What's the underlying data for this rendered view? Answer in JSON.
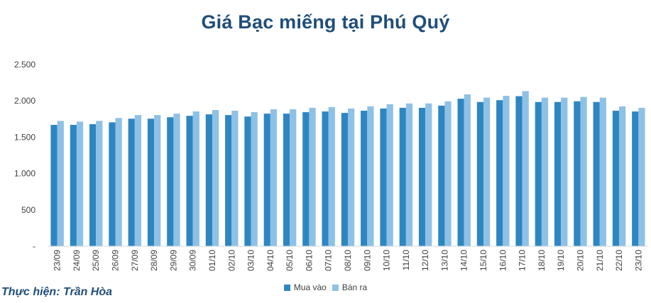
{
  "chart_data": {
    "type": "bar",
    "title": "Giá Bạc miếng tại Phú Quý",
    "xlabel": "",
    "ylabel": "",
    "ylim": [
      0,
      2500
    ],
    "yticks": [
      0,
      500,
      1000,
      1500,
      2000,
      2500
    ],
    "ytick_labels": [
      "-",
      "500",
      "1.000",
      "1.500",
      "2.000",
      "2.500"
    ],
    "grid": false,
    "legend_position": "bottom",
    "categories": [
      "23/09",
      "24/09",
      "25/09",
      "26/09",
      "27/09",
      "28/09",
      "29/09",
      "30/09",
      "01/10",
      "02/10",
      "03/10",
      "04/10",
      "05/10",
      "06/10",
      "07/10",
      "08/10",
      "09/10",
      "10/10",
      "11/10",
      "12/10",
      "13/10",
      "14/10",
      "15/10",
      "16/10",
      "17/10",
      "18/10",
      "19/10",
      "20/10",
      "21/10",
      "22/10",
      "23/10"
    ],
    "series": [
      {
        "name": "Mua vào",
        "color": "#2e86c1",
        "values": [
          1670,
          1670,
          1680,
          1705,
          1755,
          1755,
          1775,
          1795,
          1815,
          1805,
          1785,
          1825,
          1825,
          1845,
          1855,
          1835,
          1865,
          1895,
          1905,
          1905,
          1935,
          2030,
          1985,
          2010,
          2065,
          1985,
          1985,
          1995,
          1985,
          1865,
          1855
        ]
      },
      {
        "name": "Bán ra",
        "color": "#8ec1e6",
        "values": [
          1725,
          1715,
          1725,
          1765,
          1805,
          1805,
          1825,
          1855,
          1875,
          1865,
          1845,
          1885,
          1885,
          1905,
          1915,
          1895,
          1925,
          1955,
          1965,
          1965,
          1995,
          2090,
          2045,
          2070,
          2135,
          2045,
          2045,
          2055,
          2045,
          1925,
          1905
        ]
      }
    ]
  },
  "credit": "Thực hiện: Trần Hòa"
}
